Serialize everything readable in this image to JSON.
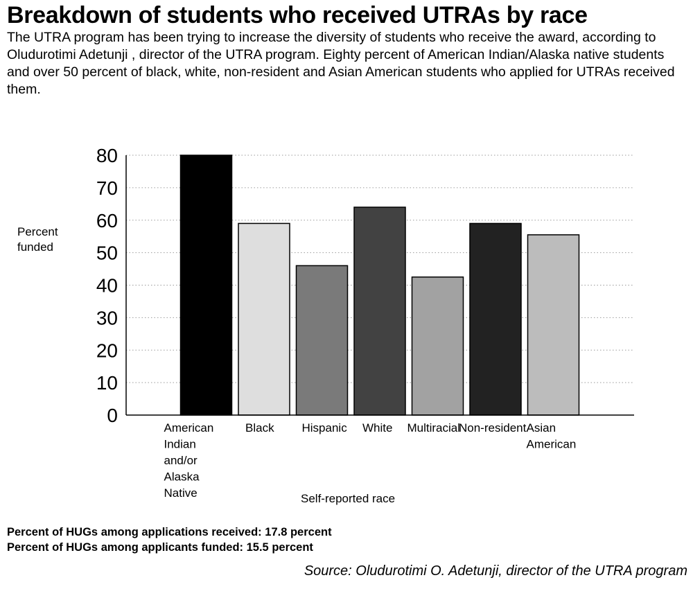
{
  "header": {
    "title": "Breakdown of students who received UTRAs by race",
    "subtitle": "The UTRA program has been trying to increase the diversity of students who receive the award, according to Oludurotimi Adetunji , director of the UTRA program. Eighty percent of American Indian/Alaska native students and over 50 percent of black, white, non-resident and Asian American students who applied for UTRAs received them."
  },
  "chart_data": {
    "type": "bar",
    "categories": [
      "American Indian and/or Alaska Native",
      "Black",
      "Hispanic",
      "White",
      "Multiracial",
      "Non-resident",
      "Asian American"
    ],
    "category_lines": [
      [
        "American",
        "Indian",
        "and/or",
        "Alaska",
        "Native"
      ],
      [
        "Black"
      ],
      [
        "Hispanic"
      ],
      [
        "White"
      ],
      [
        "Multiracial"
      ],
      [
        "Non-resident"
      ],
      [
        "Asian",
        "American"
      ]
    ],
    "values": [
      80,
      59,
      46,
      64,
      42.5,
      59,
      55.5
    ],
    "colors": [
      "#000000",
      "#dedede",
      "#7a7a7a",
      "#424242",
      "#a2a2a2",
      "#222222",
      "#bcbcbc"
    ],
    "ylim": [
      0,
      80
    ],
    "yticks": [
      0,
      10,
      20,
      30,
      40,
      50,
      60,
      70,
      80
    ],
    "ylabel_lines": [
      "Percent",
      "funded"
    ],
    "xlabel": "Self-reported race",
    "grid": "dotted horizontal"
  },
  "notes": {
    "received": "Percent of HUGs among applications received: 17.8 percent",
    "funded": "Percent of HUGs among applicants funded: 15.5 percent"
  },
  "source": "Source: Oludurotimi O. Adetunji, director of the UTRA program"
}
